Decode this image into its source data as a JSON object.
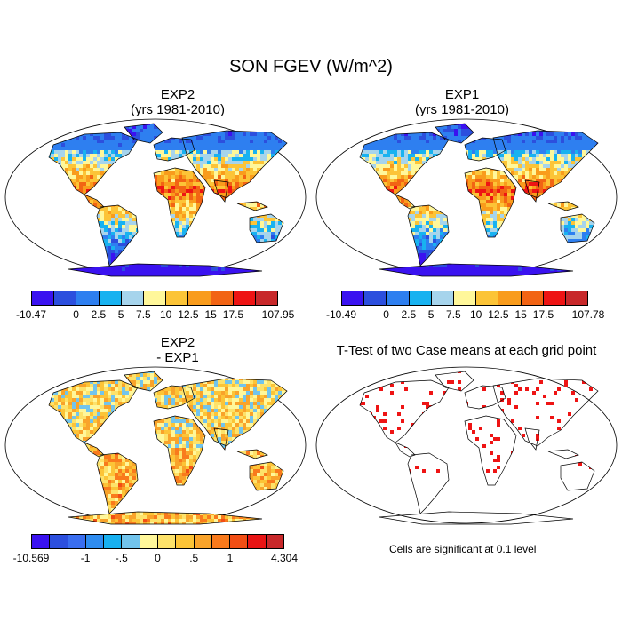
{
  "title": "SON FGEV (W/m^2)",
  "panels": {
    "exp2": {
      "title1": "EXP2",
      "title2": "(yrs 1981-2010)"
    },
    "exp1": {
      "title1": "EXP1",
      "title2": "(yrs 1981-2010)"
    },
    "diff": {
      "title1": "EXP2",
      "title2": "- EXP1"
    },
    "ttest": {
      "title": "T-Test of two Case means at each grid point",
      "note": "Cells are significant at 0.1 level"
    }
  },
  "colorbars": {
    "exp2": {
      "colors": [
        "#3a12f0",
        "#2c4fde",
        "#2e7ff0",
        "#18b2f0",
        "#a6d4ec",
        "#fff79a",
        "#fcc437",
        "#f99c1c",
        "#f26414",
        "#ee1414",
        "#c8282a"
      ],
      "labels": [
        "-10.47",
        "0",
        "2.5",
        "5",
        "7.5",
        "10",
        "12.5",
        "15",
        "17.5",
        "107.95"
      ]
    },
    "exp1": {
      "colors": [
        "#3a12f0",
        "#2c4fde",
        "#2e7ff0",
        "#18b2f0",
        "#a6d4ec",
        "#fff79a",
        "#fcc437",
        "#f99c1c",
        "#f26414",
        "#ee1414",
        "#c8282a"
      ],
      "labels": [
        "-10.49",
        "0",
        "2.5",
        "5",
        "7.5",
        "10",
        "12.5",
        "15",
        "17.5",
        "107.78"
      ]
    },
    "diff": {
      "colors": [
        "#3a12f0",
        "#2c4fde",
        "#3a6ef0",
        "#2e8cf0",
        "#18b0f0",
        "#72c4ec",
        "#fff79a",
        "#fde26a",
        "#fcc437",
        "#f9a32a",
        "#f97a1c",
        "#f24e14",
        "#e81414",
        "#c8282a"
      ],
      "labels": [
        "-10.569",
        "-1",
        "-.5",
        "0",
        ".5",
        "1",
        "4.304"
      ]
    }
  }
}
